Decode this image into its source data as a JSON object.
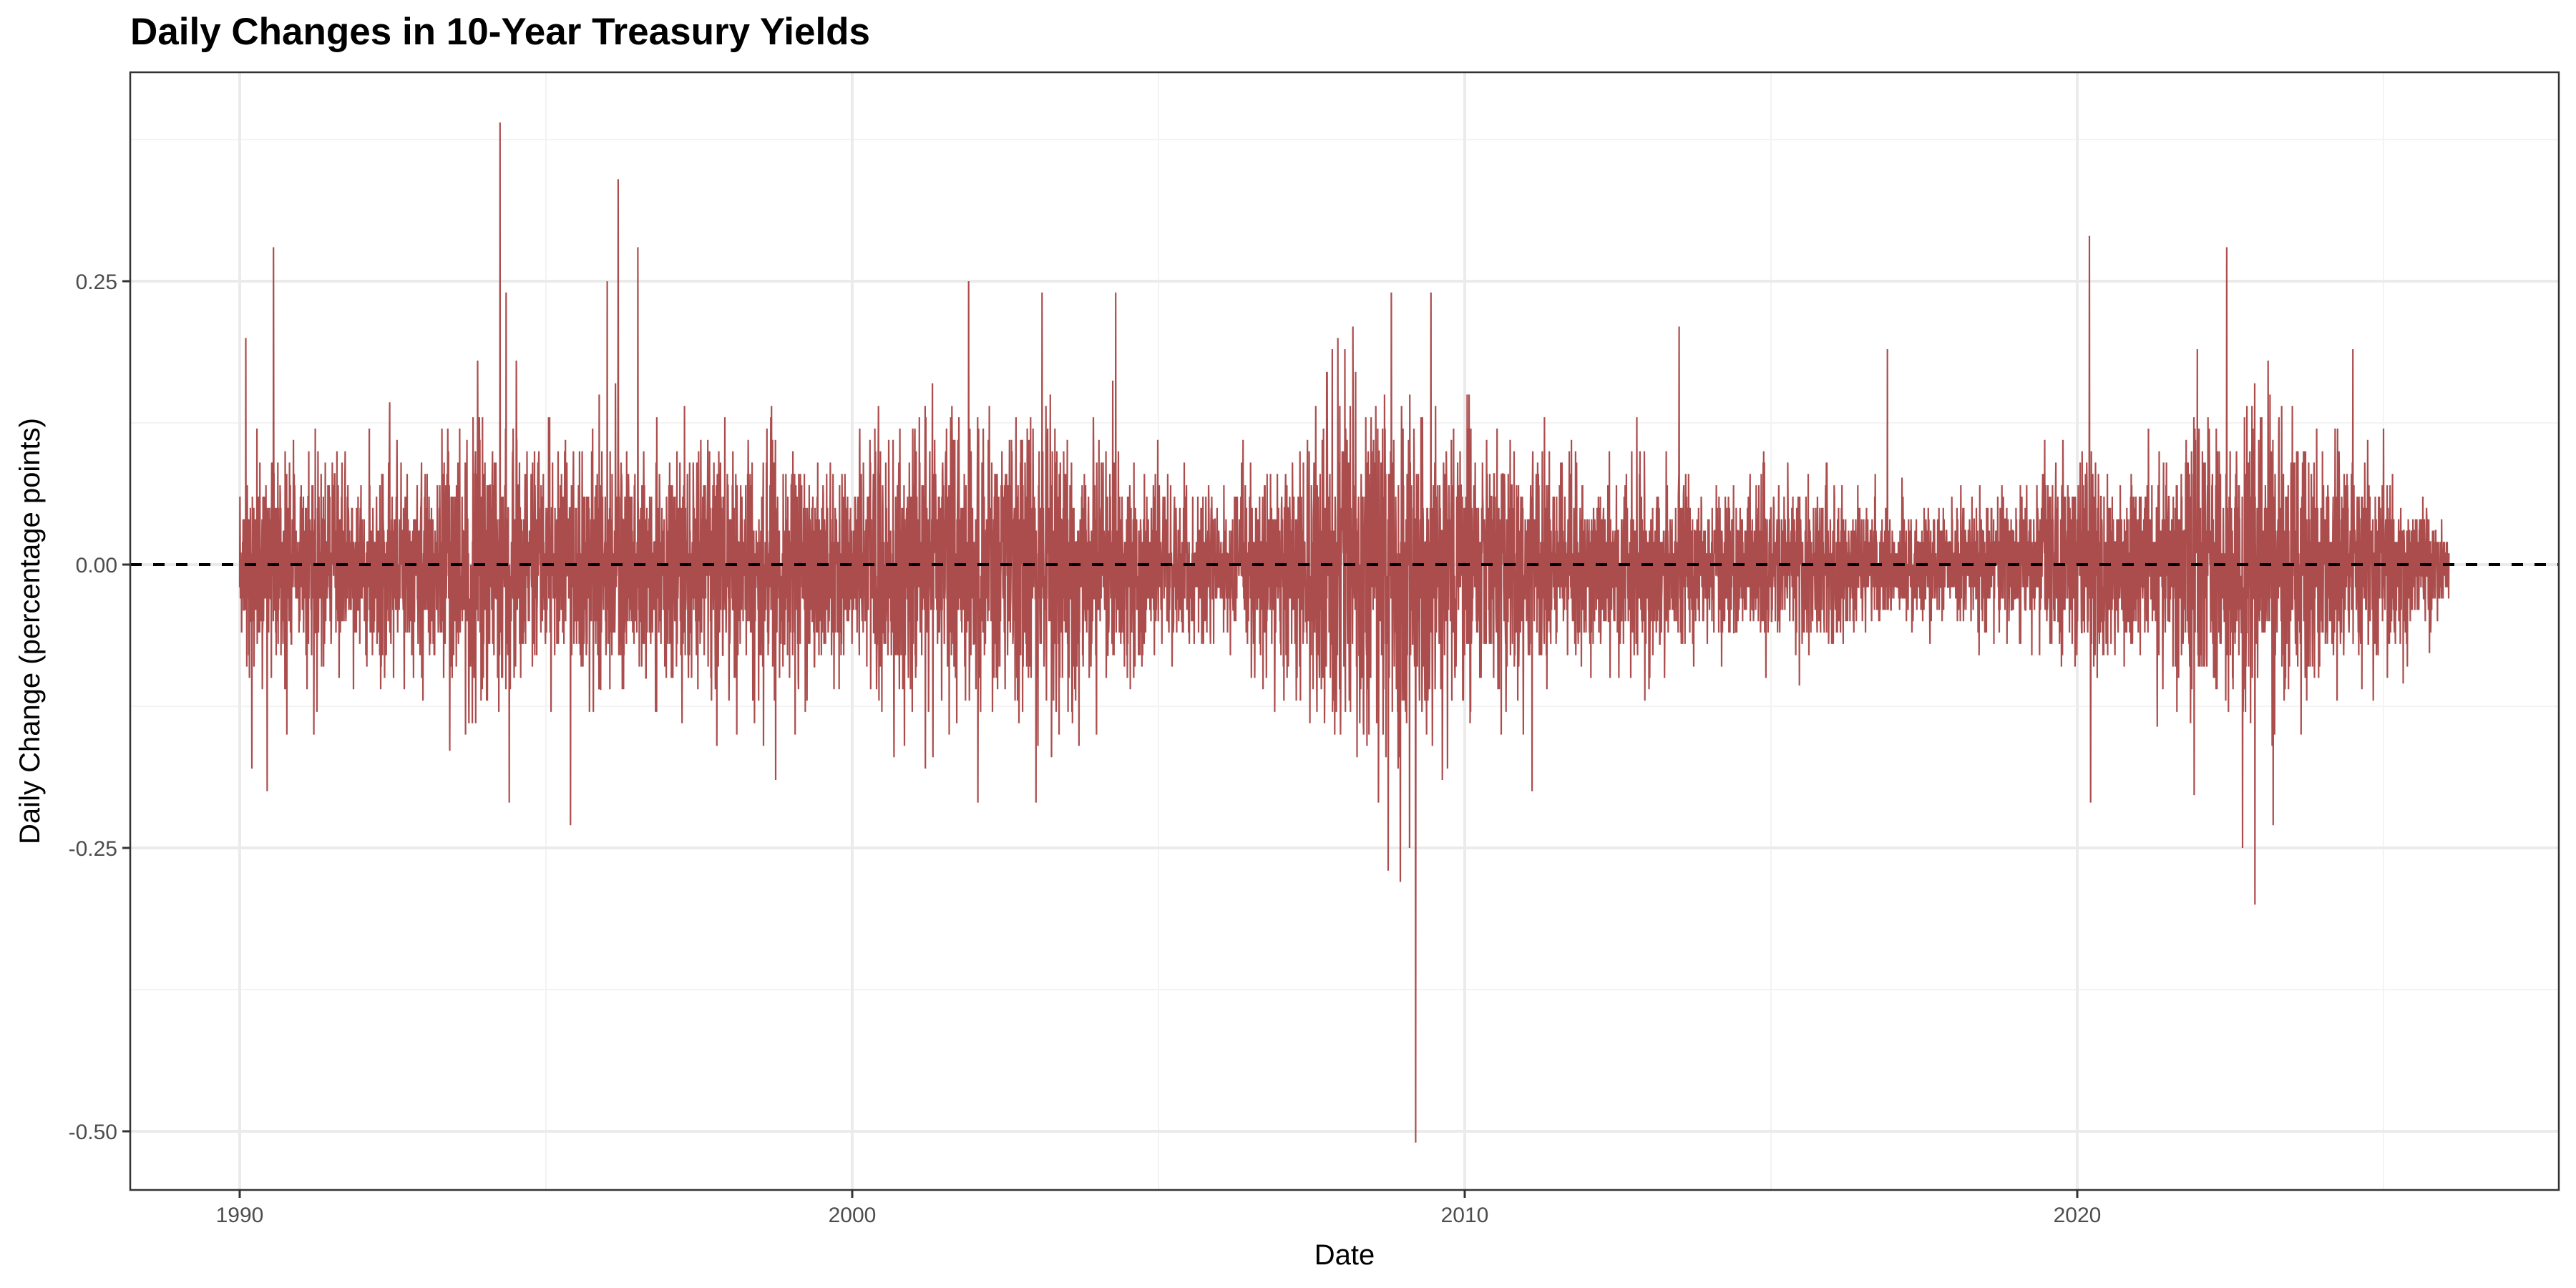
{
  "chart_data": {
    "type": "line",
    "title": "Daily Changes in 10-Year Treasury Yields",
    "xlabel": "Date",
    "ylabel": "Daily Change (percentage points)",
    "x_ticks": [
      "1990",
      "2000",
      "2010",
      "2020"
    ],
    "y_ticks": [
      "0.25",
      "0.00",
      "-0.25",
      "-0.50"
    ],
    "xlim": [
      1988.2,
      2027.8
    ],
    "ylim": [
      -0.555,
      0.434
    ],
    "x_range_data": [
      1990.0,
      2026.07
    ],
    "grid": true,
    "legend": "none",
    "reference_line": {
      "y": 0.0,
      "style": "dashed",
      "color": "#000000"
    },
    "series": [
      {
        "name": "Daily change in 10-year Treasury yield",
        "color": "#AC4D4D",
        "resolution": 0.01,
        "typical_range_by_year": [
          {
            "year": 1990,
            "low": -0.12,
            "high": 0.12
          },
          {
            "year": 1991,
            "low": -0.12,
            "high": 0.1
          },
          {
            "year": 1992,
            "low": -0.12,
            "high": 0.11
          },
          {
            "year": 1993,
            "low": -0.11,
            "high": 0.12
          },
          {
            "year": 1994,
            "low": -0.16,
            "high": 0.17
          },
          {
            "year": 1995,
            "low": -0.13,
            "high": 0.13
          },
          {
            "year": 1996,
            "low": -0.14,
            "high": 0.15
          },
          {
            "year": 1997,
            "low": -0.12,
            "high": 0.12
          },
          {
            "year": 1998,
            "low": -0.14,
            "high": 0.13
          },
          {
            "year": 1999,
            "low": -0.12,
            "high": 0.13
          },
          {
            "year": 2000,
            "low": -0.12,
            "high": 0.12
          },
          {
            "year": 2001,
            "low": -0.15,
            "high": 0.16
          },
          {
            "year": 2002,
            "low": -0.15,
            "high": 0.16
          },
          {
            "year": 2003,
            "low": -0.17,
            "high": 0.17
          },
          {
            "year": 2004,
            "low": -0.14,
            "high": 0.14
          },
          {
            "year": 2005,
            "low": -0.1,
            "high": 0.1
          },
          {
            "year": 2006,
            "low": -0.08,
            "high": 0.08
          },
          {
            "year": 2007,
            "low": -0.12,
            "high": 0.12
          },
          {
            "year": 2008,
            "low": -0.2,
            "high": 0.19
          },
          {
            "year": 2009,
            "low": -0.18,
            "high": 0.18
          },
          {
            "year": 2010,
            "low": -0.14,
            "high": 0.14
          },
          {
            "year": 2011,
            "low": -0.14,
            "high": 0.13
          },
          {
            "year": 2012,
            "low": -0.09,
            "high": 0.09
          },
          {
            "year": 2013,
            "low": -0.11,
            "high": 0.12
          },
          {
            "year": 2014,
            "low": -0.08,
            "high": 0.08
          },
          {
            "year": 2015,
            "low": -0.09,
            "high": 0.1
          },
          {
            "year": 2016,
            "low": -0.08,
            "high": 0.1
          },
          {
            "year": 2017,
            "low": -0.06,
            "high": 0.06
          },
          {
            "year": 2018,
            "low": -0.07,
            "high": 0.07
          },
          {
            "year": 2019,
            "low": -0.09,
            "high": 0.08
          },
          {
            "year": 2020,
            "low": -0.12,
            "high": 0.12
          },
          {
            "year": 2021,
            "low": -0.09,
            "high": 0.09
          },
          {
            "year": 2022,
            "low": -0.17,
            "high": 0.17
          },
          {
            "year": 2023,
            "low": -0.16,
            "high": 0.16
          },
          {
            "year": 2024,
            "low": -0.12,
            "high": 0.12
          },
          {
            "year": 2025,
            "low": -0.1,
            "high": 0.1
          },
          {
            "year": 2026,
            "low": -0.05,
            "high": 0.07
          }
        ],
        "notable_points": [
          {
            "x": 1990.55,
            "y": 0.28
          },
          {
            "x": 1990.1,
            "y": 0.2
          },
          {
            "x": 1990.2,
            "y": -0.18
          },
          {
            "x": 1990.45,
            "y": -0.2
          },
          {
            "x": 1994.25,
            "y": 0.39
          },
          {
            "x": 1994.35,
            "y": 0.24
          },
          {
            "x": 1994.4,
            "y": -0.21
          },
          {
            "x": 1995.4,
            "y": -0.23
          },
          {
            "x": 1996.18,
            "y": 0.34
          },
          {
            "x": 1996.5,
            "y": 0.28
          },
          {
            "x": 1996.0,
            "y": 0.25
          },
          {
            "x": 1998.75,
            "y": -0.19
          },
          {
            "x": 2001.9,
            "y": 0.25
          },
          {
            "x": 2002.05,
            "y": -0.21
          },
          {
            "x": 2003.0,
            "y": -0.21
          },
          {
            "x": 2003.1,
            "y": 0.24
          },
          {
            "x": 2004.3,
            "y": 0.24
          },
          {
            "x": 2008.75,
            "y": -0.27
          },
          {
            "x": 2008.8,
            "y": 0.24
          },
          {
            "x": 2008.95,
            "y": -0.28
          },
          {
            "x": 2009.1,
            "y": -0.25
          },
          {
            "x": 2009.2,
            "y": -0.51
          },
          {
            "x": 2009.45,
            "y": 0.24
          },
          {
            "x": 2011.1,
            "y": -0.2
          },
          {
            "x": 2013.5,
            "y": 0.21
          },
          {
            "x": 2016.9,
            "y": 0.19
          },
          {
            "x": 2020.2,
            "y": 0.29
          },
          {
            "x": 2020.22,
            "y": -0.21
          },
          {
            "x": 2022.44,
            "y": 0.28
          },
          {
            "x": 2022.7,
            "y": -0.25
          },
          {
            "x": 2022.9,
            "y": -0.3
          },
          {
            "x": 2023.2,
            "y": -0.23
          },
          {
            "x": 2024.5,
            "y": 0.19
          }
        ]
      }
    ]
  },
  "colors": {
    "line": "#AC4D4D",
    "panel_border": "#333333",
    "grid_major": "#EBEBEB",
    "grid_minor": "#F3F3F3",
    "tick_label": "#4D4D4D"
  }
}
